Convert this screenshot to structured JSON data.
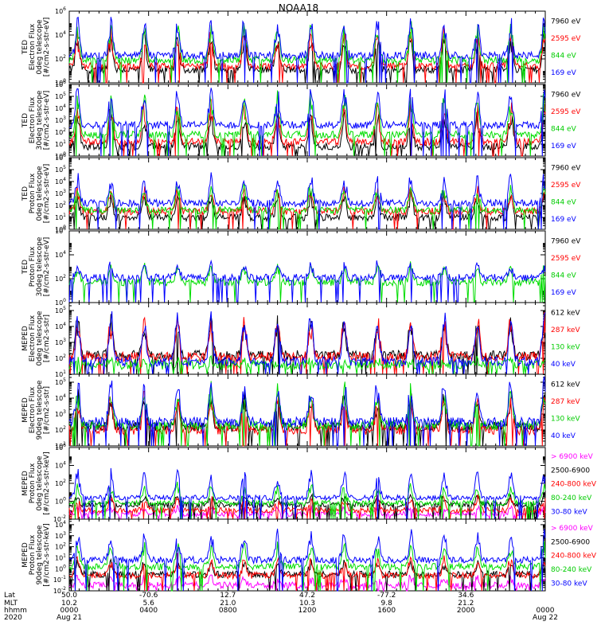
{
  "chart_data": {
    "type": "line",
    "title": "NOAA18",
    "year": "2020",
    "x_axis": {
      "row_labels": [
        "Lat",
        "MLT",
        "hhmm",
        "2020"
      ],
      "columns": [
        {
          "lat": "50.0",
          "mlt": "10.2",
          "hhmm": "0000",
          "date": "Aug 21",
          "hour": 0
        },
        {
          "lat": "-70.6",
          "mlt": "5.6",
          "hhmm": "0400",
          "date": "",
          "hour": 4
        },
        {
          "lat": "12.7",
          "mlt": "21.0",
          "hhmm": "0800",
          "date": "",
          "hour": 8
        },
        {
          "lat": "47.2",
          "mlt": "10.3",
          "hhmm": "1200",
          "date": "",
          "hour": 12
        },
        {
          "lat": "-77.2",
          "mlt": "9.8",
          "hhmm": "1600",
          "date": "",
          "hour": 16
        },
        {
          "lat": "34.6",
          "mlt": "21.2",
          "hhmm": "2000",
          "date": "",
          "hour": 20
        },
        {
          "lat": "",
          "mlt": "",
          "hhmm": "0000",
          "date": "Aug 22",
          "hour": 24
        }
      ],
      "xlim_hours": [
        0,
        24
      ]
    },
    "panels": [
      {
        "ylabel": [
          "TED",
          "Electron Flux",
          "0deg telescope",
          "[#/cm2-s-str-eV]"
        ],
        "yticks": [
          {
            "exp": 0,
            "label": "10"
          },
          {
            "exp": 2,
            "label": "10"
          },
          {
            "exp": 4,
            "label": "10"
          },
          {
            "exp": 6,
            "label": "10"
          }
        ],
        "ylim_exp": [
          0,
          6
        ],
        "series": [
          {
            "name": "7960 eV",
            "color": "#000000",
            "base": 1.1,
            "amp": 3.0
          },
          {
            "name": "2595 eV",
            "color": "#ff0000",
            "base": 1.4,
            "amp": 3.0
          },
          {
            "name": "844 eV",
            "color": "#00dd00",
            "base": 1.9,
            "amp": 3.1
          },
          {
            "name": "169 eV",
            "color": "#0000ff",
            "base": 2.3,
            "amp": 3.2
          }
        ]
      },
      {
        "ylabel": [
          "TED",
          "Electron Flux",
          "30deg telescope",
          "[#/cm2-s-str-eV]"
        ],
        "yticks": [
          {
            "exp": 0,
            "label": "10"
          },
          {
            "exp": 1,
            "label": "10"
          },
          {
            "exp": 2,
            "label": "10"
          },
          {
            "exp": 3,
            "label": "10"
          },
          {
            "exp": 4,
            "label": "10"
          },
          {
            "exp": 5,
            "label": "10"
          },
          {
            "exp": 6,
            "label": "10"
          }
        ],
        "ylim_exp": [
          0,
          6
        ],
        "series": [
          {
            "name": "7960 eV",
            "color": "#000000",
            "base": 0.8,
            "amp": 3.0
          },
          {
            "name": "2595 eV",
            "color": "#ff0000",
            "base": 1.2,
            "amp": 3.2
          },
          {
            "name": "844 eV",
            "color": "#00dd00",
            "base": 1.8,
            "amp": 3.3
          },
          {
            "name": "169 eV",
            "color": "#0000ff",
            "base": 2.6,
            "amp": 3.0
          }
        ]
      },
      {
        "ylabel": [
          "TED",
          "Proton Flux",
          "0deg telescope",
          "[#/cm2-s-str-eV]"
        ],
        "yticks": [
          {
            "exp": 0,
            "label": "10"
          },
          {
            "exp": 1,
            "label": "10"
          },
          {
            "exp": 2,
            "label": "10"
          },
          {
            "exp": 3,
            "label": "10"
          },
          {
            "exp": 4,
            "label": "10"
          },
          {
            "exp": 5,
            "label": "10"
          },
          {
            "exp": 6,
            "label": "10"
          }
        ],
        "ylim_exp": [
          0,
          6
        ],
        "series": [
          {
            "name": "7960 eV",
            "color": "#000000",
            "base": 1.0,
            "amp": 2.0
          },
          {
            "name": "2595 eV",
            "color": "#ff0000",
            "base": 1.5,
            "amp": 2.0
          },
          {
            "name": "844 eV",
            "color": "#00dd00",
            "base": 1.6,
            "amp": 2.2
          },
          {
            "name": "169 eV",
            "color": "#0000ff",
            "base": 2.2,
            "amp": 2.4
          }
        ]
      },
      {
        "ylabel": [
          "TED",
          "Proton Flux",
          "30deg telescope",
          "[#/cm2-s-str-eV]"
        ],
        "yticks": [
          {
            "exp": 0,
            "label": "10"
          },
          {
            "exp": 2,
            "label": "10"
          },
          {
            "exp": 4,
            "label": "10"
          },
          {
            "exp": 6,
            "label": "10"
          }
        ],
        "ylim_exp": [
          0,
          6
        ],
        "series": [
          {
            "name": "7960 eV",
            "color": "#000000",
            "base": 0.0,
            "amp": 0.0
          },
          {
            "name": "2595 eV",
            "color": "#ff0000",
            "base": 0.0,
            "amp": 0.0
          },
          {
            "name": "844 eV",
            "color": "#00dd00",
            "base": 1.7,
            "amp": 1.4
          },
          {
            "name": "169 eV",
            "color": "#0000ff",
            "base": 2.1,
            "amp": 1.2
          }
        ]
      },
      {
        "ylabel": [
          "MEPED",
          "Electron Flux",
          "0deg telescope",
          "[#/cm2-s-str]"
        ],
        "yticks": [
          {
            "exp": 1,
            "label": "10"
          },
          {
            "exp": 2,
            "label": "10"
          },
          {
            "exp": 3,
            "label": "10"
          },
          {
            "exp": 4,
            "label": "10"
          },
          {
            "exp": 5,
            "label": "10"
          }
        ],
        "ylim_exp": [
          1,
          5.5
        ],
        "series": [
          {
            "name": "612 keV",
            "color": "#000000",
            "base": 2.2,
            "amp": 2.3
          },
          {
            "name": "287 keV",
            "color": "#ff0000",
            "base": 2.1,
            "amp": 2.5
          },
          {
            "name": "130 keV",
            "color": "#00dd00",
            "base": 1.6,
            "amp": 0.3
          },
          {
            "name": "40 keV",
            "color": "#0000ff",
            "base": 1.8,
            "amp": 3.2
          }
        ]
      },
      {
        "ylabel": [
          "MEPED",
          "Electron Flux",
          "90deg telescope",
          "[#/cm2-s-str]"
        ],
        "yticks": [
          {
            "exp": 1,
            "label": "10"
          },
          {
            "exp": 2,
            "label": "10"
          },
          {
            "exp": 3,
            "label": "10"
          },
          {
            "exp": 4,
            "label": "10"
          },
          {
            "exp": 5,
            "label": "10"
          }
        ],
        "ylim_exp": [
          1,
          5.5
        ],
        "series": [
          {
            "name": "612 keV",
            "color": "#000000",
            "base": 2.2,
            "amp": 2.2
          },
          {
            "name": "287 keV",
            "color": "#ff0000",
            "base": 2.0,
            "amp": 2.2
          },
          {
            "name": "130 keV",
            "color": "#00dd00",
            "base": 2.3,
            "amp": 2.4
          },
          {
            "name": "40 keV",
            "color": "#0000ff",
            "base": 2.5,
            "amp": 2.7
          }
        ]
      },
      {
        "ylabel": [
          "MEPED",
          "Proton Flux",
          "0deg telescope",
          "[#/cm2-s-str-keV]"
        ],
        "yticks": [
          {
            "exp": -2,
            "label": "10"
          },
          {
            "exp": 0,
            "label": "10"
          },
          {
            "exp": 2,
            "label": "10"
          },
          {
            "exp": 4,
            "label": "10"
          },
          {
            "exp": 6,
            "label": "10"
          }
        ],
        "ylim_exp": [
          -2,
          6
        ],
        "series": [
          {
            "name": "> 6900 keV",
            "color": "#ff00ff",
            "base": -1.4,
            "amp": 0.8
          },
          {
            "name": "2500-6900",
            "color": "#000000",
            "base": -0.4,
            "amp": 1.0
          },
          {
            "name": "240-800 keV",
            "color": "#ff0000",
            "base": -1.0,
            "amp": 1.5
          },
          {
            "name": "80-240 keV",
            "color": "#00dd00",
            "base": -0.2,
            "amp": 2.0
          },
          {
            "name": "30-80 keV",
            "color": "#0000ff",
            "base": 0.4,
            "amp": 3.0
          }
        ]
      },
      {
        "ylabel": [
          "MEPED",
          "Proton Flux",
          "90deg telescope",
          "[#/cm2-s-str-keV]"
        ],
        "yticks": [
          {
            "exp": -2,
            "label": "10"
          },
          {
            "exp": -1,
            "label": "10"
          },
          {
            "exp": 0,
            "label": "10"
          },
          {
            "exp": 1,
            "label": "10"
          },
          {
            "exp": 2,
            "label": "10"
          },
          {
            "exp": 3,
            "label": "10"
          },
          {
            "exp": 4,
            "label": "10"
          }
        ],
        "ylim_exp": [
          -2,
          4.5
        ],
        "series": [
          {
            "name": "> 6900 keV",
            "color": "#ff00ff",
            "base": -1.5,
            "amp": 0.8
          },
          {
            "name": "2500-6900",
            "color": "#000000",
            "base": -0.5,
            "amp": 1.2
          },
          {
            "name": "240-800 keV",
            "color": "#ff0000",
            "base": -0.6,
            "amp": 1.6
          },
          {
            "name": "80-240 keV",
            "color": "#00dd00",
            "base": 0.2,
            "amp": 2.0
          },
          {
            "name": "30-80 keV",
            "color": "#0000ff",
            "base": 0.8,
            "amp": 2.6
          }
        ]
      }
    ]
  }
}
